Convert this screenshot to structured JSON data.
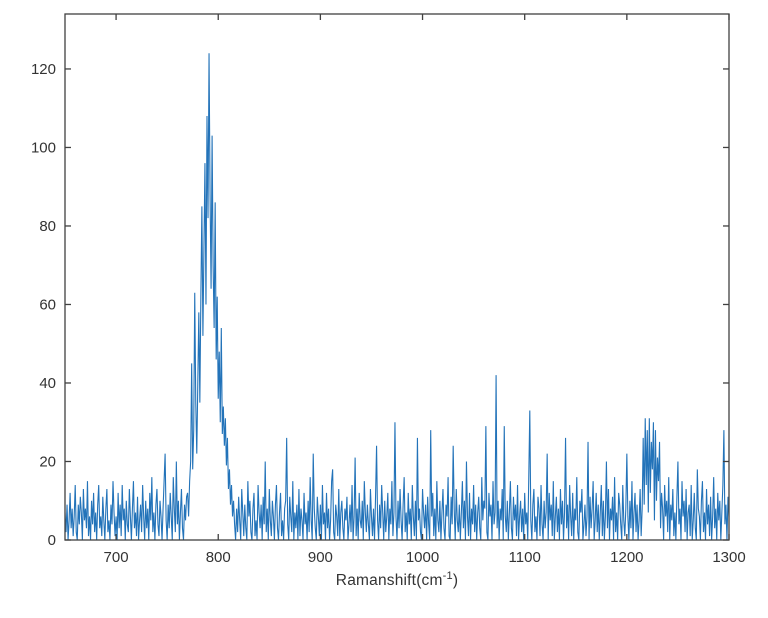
{
  "figure": {
    "background": "#ffffff",
    "xlabel": {
      "prefix": "Ramanshift(cm",
      "sup": "-1",
      "suffix": ")"
    }
  },
  "chart_data": {
    "type": "line",
    "title": "",
    "xlabel": "Ramanshift(cm^-1)",
    "ylabel": "",
    "xlim": [
      650,
      1300
    ],
    "ylim": [
      0,
      134
    ],
    "x_ticks": [
      700,
      800,
      900,
      1000,
      1100,
      1200,
      1300
    ],
    "y_ticks": [
      0,
      20,
      40,
      60,
      80,
      100,
      120
    ],
    "grid": false,
    "legend": null,
    "box": true,
    "line_color": "#2373b9",
    "axis_color": "#404040",
    "label_color": "#333333",
    "peak_center": 791,
    "peak_max": 124,
    "x_start": 650,
    "x_step": 1,
    "values": [
      7,
      2,
      9,
      0,
      5,
      12,
      3,
      8,
      1,
      6,
      14,
      2,
      0,
      9,
      4,
      11,
      7,
      0,
      13,
      5,
      8,
      3,
      15,
      1,
      6,
      0,
      10,
      4,
      12,
      2,
      7,
      0,
      9,
      14,
      3,
      6,
      1,
      11,
      5,
      0,
      8,
      13,
      2,
      5,
      0,
      9,
      4,
      15,
      7,
      1,
      6,
      0,
      12,
      3,
      9,
      1,
      14,
      5,
      8,
      0,
      10,
      4,
      2,
      13,
      6,
      0,
      8,
      15,
      3,
      7,
      1,
      11,
      0,
      5,
      9,
      2,
      14,
      6,
      0,
      10,
      3,
      8,
      0,
      12,
      5,
      16,
      2,
      7,
      0,
      9,
      13,
      4,
      1,
      10,
      6,
      0,
      8,
      15,
      22,
      5,
      0,
      9,
      3,
      12,
      6,
      0,
      16,
      8,
      2,
      20,
      4,
      10,
      0,
      7,
      13,
      3,
      0,
      9,
      5,
      11,
      12,
      6,
      15,
      20,
      45,
      18,
      28,
      63,
      35,
      22,
      40,
      58,
      35,
      62,
      85,
      52,
      74,
      96,
      60,
      108,
      82,
      124,
      88,
      64,
      103,
      70,
      54,
      86,
      46,
      62,
      36,
      48,
      30,
      54,
      27,
      34,
      24,
      31,
      19,
      26,
      13,
      18,
      9,
      14,
      6,
      10,
      4,
      0,
      8,
      2,
      11,
      5,
      0,
      13,
      7,
      1,
      9,
      3,
      0,
      15,
      6,
      10,
      2,
      0,
      8,
      12,
      1,
      5,
      0,
      14,
      7,
      3,
      9,
      0,
      11,
      4,
      20,
      2,
      8,
      0,
      13,
      5,
      1,
      10,
      6,
      0,
      9,
      14,
      3,
      0,
      7,
      12,
      1,
      5,
      0,
      8,
      10,
      26,
      4,
      0,
      11,
      6,
      2,
      15,
      0,
      7,
      3,
      9,
      0,
      13,
      1,
      8,
      5,
      0,
      12,
      4,
      7,
      0,
      10,
      2,
      16,
      5,
      0,
      22,
      8,
      3,
      0,
      11,
      6,
      1,
      9,
      0,
      14,
      4,
      7,
      0,
      12,
      3,
      8,
      0,
      5,
      15,
      18,
      2,
      0,
      9,
      6,
      1,
      13,
      0,
      7,
      10,
      3,
      0,
      8,
      5,
      11,
      0,
      4,
      9,
      2,
      14,
      0,
      6,
      21,
      1,
      8,
      0,
      12,
      5,
      3,
      10,
      0,
      15,
      7,
      2,
      9,
      4,
      0,
      13,
      6,
      1,
      8,
      0,
      11,
      24,
      5,
      0,
      9,
      3,
      14,
      7,
      0,
      10,
      2,
      6,
      12,
      0,
      8,
      4,
      15,
      1,
      7,
      30,
      6,
      0,
      10,
      3,
      13,
      5,
      0,
      9,
      16,
      2,
      7,
      0,
      12,
      4,
      8,
      0,
      14,
      6,
      1,
      10,
      0,
      26,
      5,
      8,
      2,
      0,
      13,
      7,
      3,
      9,
      0,
      11,
      4,
      0,
      28,
      6,
      12,
      1,
      8,
      0,
      15,
      5,
      2,
      10,
      0,
      7,
      13,
      3,
      0,
      9,
      6,
      16,
      1,
      0,
      11,
      4,
      24,
      8,
      0,
      13,
      5,
      2,
      9,
      0,
      7,
      15,
      3,
      10,
      0,
      20,
      6,
      1,
      12,
      0,
      8,
      4,
      14,
      2,
      9,
      0,
      7,
      11,
      3,
      0,
      16,
      5,
      10,
      8,
      29,
      2,
      0,
      12,
      6,
      9,
      0,
      15,
      4,
      7,
      42,
      3,
      10,
      0,
      8,
      5,
      13,
      0,
      29,
      6,
      2,
      10,
      0,
      7,
      15,
      3,
      0,
      11,
      5,
      9,
      1,
      14,
      0,
      6,
      10,
      2,
      8,
      0,
      12,
      4,
      7,
      0,
      16,
      33,
      5,
      0,
      9,
      13,
      2,
      6,
      0,
      11,
      8,
      1,
      14,
      4,
      0,
      10,
      3,
      7,
      22,
      0,
      12,
      5,
      9,
      1,
      15,
      0,
      6,
      11,
      2,
      8,
      0,
      13,
      4,
      10,
      0,
      7,
      26,
      3,
      9,
      0,
      14,
      6,
      1,
      12,
      0,
      8,
      5,
      16,
      2,
      0,
      10,
      7,
      13,
      0,
      4,
      9,
      1,
      6,
      25,
      0,
      11,
      3,
      8,
      15,
      0,
      5,
      12,
      2,
      9,
      0,
      7,
      14,
      1,
      10,
      0,
      6,
      20,
      3,
      13,
      0,
      8,
      5,
      11,
      0,
      16,
      2,
      7,
      0,
      12,
      9,
      4,
      0,
      14,
      5,
      1,
      8,
      22,
      6,
      0,
      10,
      3,
      15,
      0,
      7,
      12,
      2,
      9,
      0,
      5,
      13,
      1,
      8,
      26,
      9,
      31,
      14,
      28,
      7,
      31,
      12,
      25,
      18,
      30,
      5,
      28,
      10,
      21,
      15,
      25,
      3,
      12,
      8,
      0,
      14,
      6,
      10,
      2,
      16,
      0,
      9,
      5,
      13,
      1,
      7,
      0,
      11,
      20,
      4,
      8,
      0,
      15,
      6,
      10,
      2,
      13,
      0,
      7,
      9,
      1,
      14,
      0,
      5,
      12,
      3,
      0,
      18,
      8,
      6,
      0,
      10,
      15,
      2,
      7,
      0,
      13,
      4,
      9,
      1,
      11,
      0,
      6,
      16,
      3,
      8,
      0,
      12,
      5,
      10,
      0,
      7,
      14,
      28,
      4,
      9,
      0,
      11,
      6
    ]
  }
}
